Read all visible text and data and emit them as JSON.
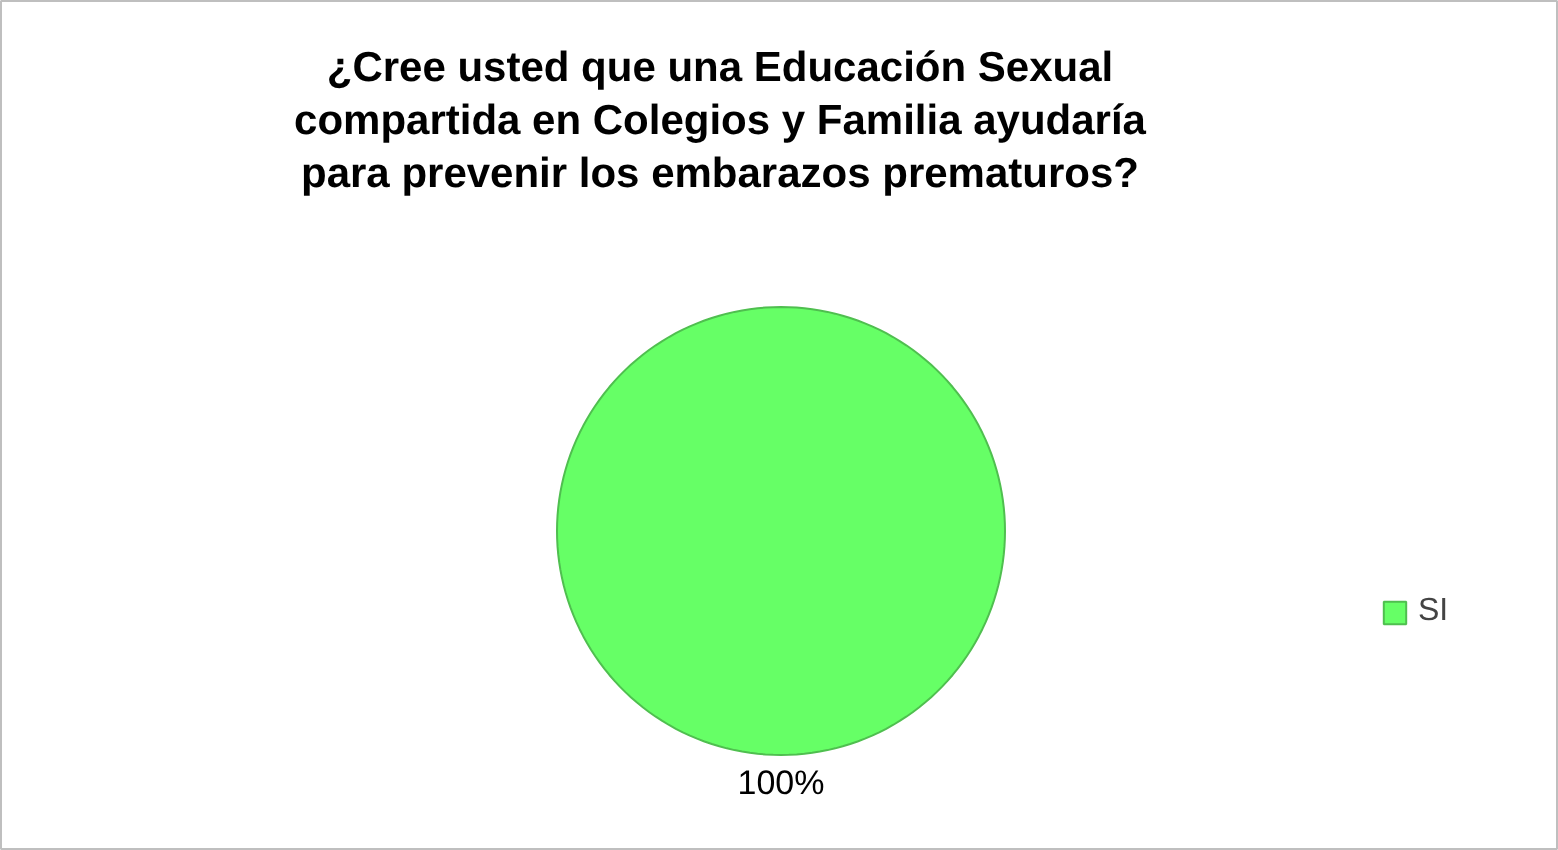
{
  "chart_data": {
    "type": "pie",
    "title": "¿Cree usted que una Educación Sexual compartida en Colegios y Familia ayudaría para prevenir los embarazos prematuros?",
    "categories": [
      "SI"
    ],
    "values": [
      100
    ],
    "colors": [
      "#66ff66"
    ],
    "value_labels": [
      "100%"
    ],
    "legend": "right"
  }
}
